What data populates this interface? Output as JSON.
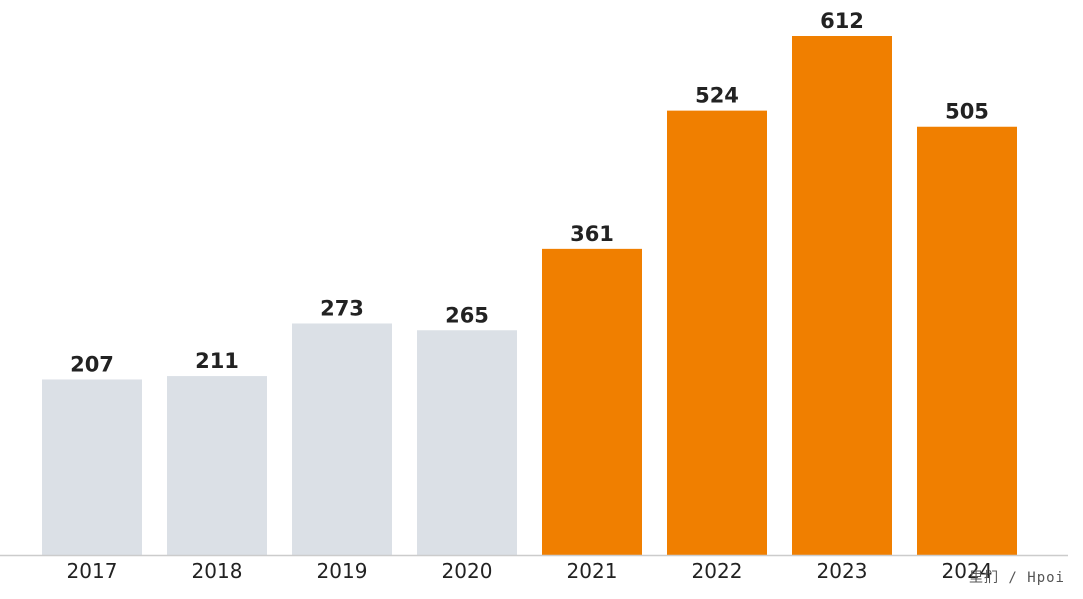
{
  "chart_data": {
    "type": "bar",
    "categories": [
      "2017",
      "2018",
      "2019",
      "2020",
      "2021",
      "2022",
      "2023",
      "2024"
    ],
    "values": [
      207,
      211,
      273,
      265,
      361,
      524,
      612,
      505
    ],
    "bar_colors": [
      "#dbe0e6",
      "#dbe0e6",
      "#dbe0e6",
      "#dbe0e6",
      "#f07f00",
      "#f07f00",
      "#f07f00",
      "#f07f00"
    ],
    "title": "",
    "xlabel": "",
    "ylabel": "",
    "ylim": [
      0,
      612
    ],
    "grid": false,
    "data_labels": true
  },
  "colors": {
    "muted_bar": "#dbe0e6",
    "accent_bar": "#f07f00",
    "axis_line": "#cccccc",
    "text": "#222222"
  },
  "watermark": {
    "text": "里扪 / Hpoi"
  }
}
